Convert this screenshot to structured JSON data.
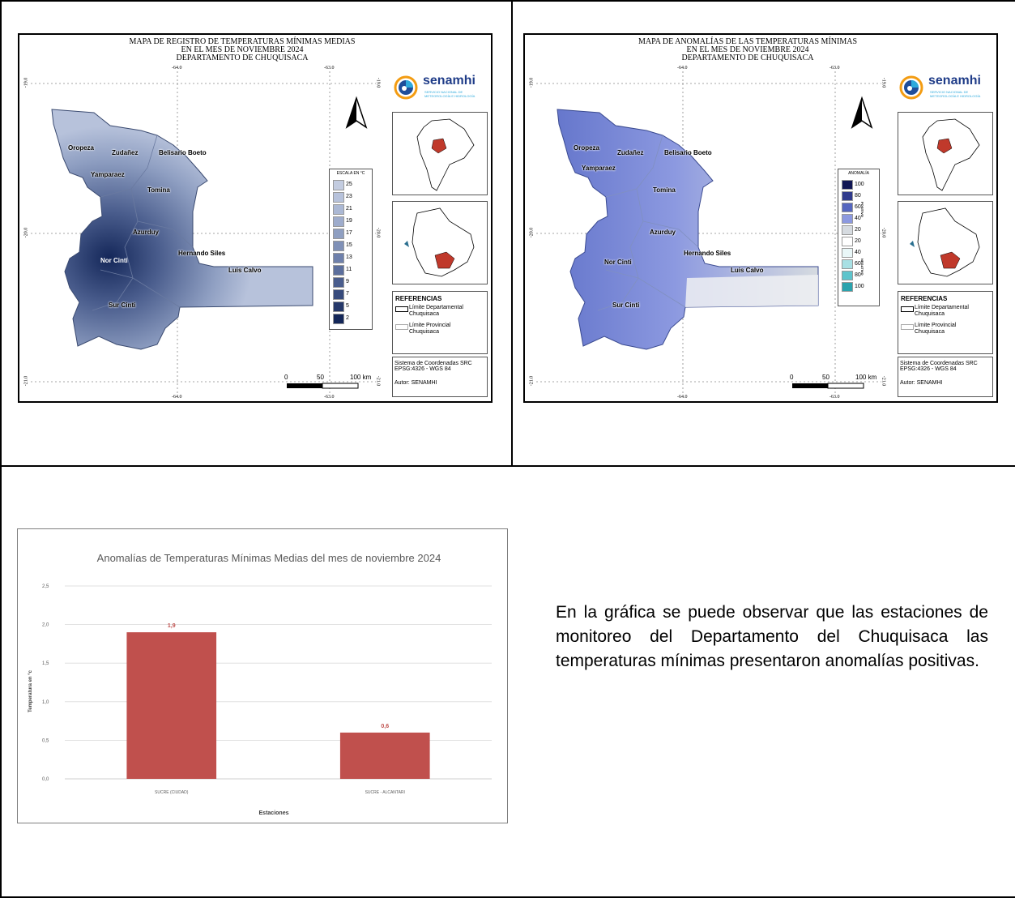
{
  "map_left": {
    "title_lines": [
      "MAPA DE REGISTRO DE TEMPERATURAS MÍNIMAS MEDIAS",
      "EN EL MES DE NOVIEMBRE 2024",
      "DEPARTAMENTO DE CHUQUISACA"
    ],
    "coords_top": [
      "-64.0",
      "-63.0"
    ],
    "coords_bottom": [
      "-64.0",
      "-63.0"
    ],
    "coords_left": [
      "-19.0",
      "-20.0",
      "-21.0"
    ],
    "coords_right": [
      "-19.0",
      "-20.0",
      "-21.0"
    ],
    "legend_title": "ESCALA EN °C",
    "legend_items": [
      {
        "label": "25",
        "color": "#c3cce0"
      },
      {
        "label": "23",
        "color": "#b7c2db"
      },
      {
        "label": "21",
        "color": "#abb8d4"
      },
      {
        "label": "19",
        "color": "#9eaccc"
      },
      {
        "label": "17",
        "color": "#8f9fc2"
      },
      {
        "label": "15",
        "color": "#7f90b7"
      },
      {
        "label": "13",
        "color": "#6e80ab"
      },
      {
        "label": "11",
        "color": "#5c6f9d"
      },
      {
        "label": "9",
        "color": "#4a5d8d"
      },
      {
        "label": "7",
        "color": "#374b7c"
      },
      {
        "label": "5",
        "color": "#25386a"
      },
      {
        "label": "2",
        "color": "#142759"
      }
    ],
    "places": [
      "Oropeza",
      "Zudañez",
      "Belisario Boeto",
      "Yamparaez",
      "Tomina",
      "Azurduy",
      "Hernando Siles",
      "Luis Calvo",
      "Nor Cinti",
      "Sur Cinti"
    ],
    "scale_labels": [
      "0",
      "50",
      "100 km"
    ]
  },
  "map_right": {
    "title_lines": [
      "MAPA DE ANOMALÍAS DE LAS TEMPERATURAS MÍNIMAS",
      "EN EL MES DE NOVIEMBRE 2024",
      "DEPARTAMENTO DE CHUQUISACA"
    ],
    "coords_top": [
      "-64.0",
      "-63.0"
    ],
    "coords_bottom": [
      "-64.0",
      "-63.0"
    ],
    "coords_left": [
      "-19.0",
      "-20.0",
      "-21.0"
    ],
    "coords_right": [
      "-19.0",
      "-20.0",
      "-21.0"
    ],
    "legend_title": "ANOMALÍA",
    "positive_label": "POSITIVO",
    "negative_label": "NEGATIVO",
    "legend_items": [
      {
        "label": "100",
        "color": "#101654"
      },
      {
        "label": "80",
        "color": "#2f3a8c"
      },
      {
        "label": "60",
        "color": "#5566bf"
      },
      {
        "label": "40",
        "color": "#8c99e0"
      },
      {
        "label": "20",
        "color": "#d6dbe0"
      },
      {
        "label": "20",
        "color": "#ffffff"
      },
      {
        "label": "40",
        "color": "#e9f7f8"
      },
      {
        "label": "60",
        "color": "#a8e0e4"
      },
      {
        "label": "80",
        "color": "#5dc4cc"
      },
      {
        "label": "100",
        "color": "#2aa3ad"
      }
    ],
    "places": [
      "Oropeza",
      "Zudañez",
      "Belisario Boeto",
      "Yamparaez",
      "Tomina",
      "Azurduy",
      "Hernando Siles",
      "Luis Calvo",
      "Nor Cinti",
      "Sur Cinti"
    ],
    "scale_labels": [
      "0",
      "50",
      "100 km"
    ]
  },
  "side": {
    "logo_text": "senamhi",
    "logo_sub1": "SERVICIO NACIONAL DE",
    "logo_sub2": "METEOROLOGÍA E HIDROLOGÍA",
    "references_title": "REFERENCIAS",
    "ref1_a": "Límite Departamental",
    "ref1_b": "Chuquisaca",
    "ref2_a": "Límite Provincial",
    "ref2_b": "Chuquisaca",
    "crs_1": "Sistema de Coordenadas SRC",
    "crs_2": "EPSG:4326 - WGS 84",
    "author": "Autor: SENAMHI"
  },
  "chart_data": {
    "type": "bar",
    "title": "Anomalías de Temperaturas Mínimas Medias del mes de noviembre 2024",
    "xlabel": "Estaciones",
    "ylabel": "Temperatura en °c",
    "categories": [
      "SUCRE (CIUDAD)",
      "SUCRE - ALCANTARI"
    ],
    "values": [
      1.9,
      0.6
    ],
    "value_labels": [
      "1,9",
      "0,6"
    ],
    "ylim": [
      0,
      2.5
    ],
    "yticks": [
      "0,0",
      "0,5",
      "1,0",
      "1,5",
      "2,0",
      "2,5"
    ],
    "grid": true,
    "bar_color": "#c0504d"
  },
  "description": "En la gráfica se puede observar que las estaciones de monitoreo del Departamento del Chuquisaca las temperaturas mínimas presentaron anomalías positivas."
}
